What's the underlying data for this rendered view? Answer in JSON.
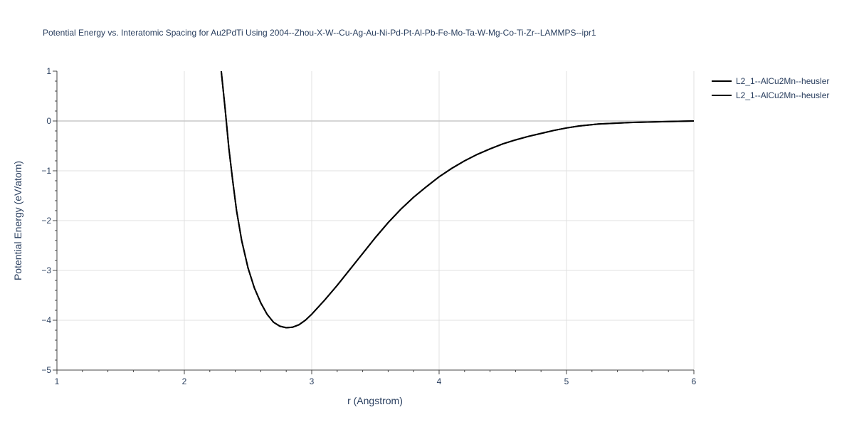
{
  "chart_data": {
    "type": "line",
    "title": "Potential Energy vs. Interatomic Spacing for Au2PdTi Using 2004--Zhou-X-W--Cu-Ag-Au-Ni-Pd-Pt-Al-Pb-Fe-Mo-Ta-W-Mg-Co-Ti-Zr--LAMMPS--ipr1",
    "xlabel": "r (Angstrom)",
    "ylabel": "Potential Energy (eV/atom)",
    "xlim": [
      1,
      6
    ],
    "ylim": [
      -5,
      1
    ],
    "x_ticks": [
      "1",
      "2",
      "3",
      "4",
      "5",
      "6"
    ],
    "y_ticks": [
      "1",
      "0",
      "−1",
      "−2",
      "−3",
      "−4",
      "−5"
    ],
    "grid": true,
    "legend_position": "top-right",
    "series": [
      {
        "name": "L2_1--AlCu2Mn--heusler",
        "color": "#000000",
        "x": [
          2.29,
          2.32,
          2.35,
          2.38,
          2.41,
          2.45,
          2.5,
          2.55,
          2.6,
          2.65,
          2.7,
          2.75,
          2.8,
          2.85,
          2.9,
          2.95,
          3.0,
          3.1,
          3.2,
          3.3,
          3.4,
          3.5,
          3.6,
          3.7,
          3.8,
          3.9,
          4.0,
          4.1,
          4.2,
          4.3,
          4.4,
          4.5,
          4.6,
          4.7,
          4.8,
          4.9,
          5.0,
          5.1,
          5.25,
          5.5,
          5.75,
          6.0
        ],
        "y": [
          1.0,
          0.25,
          -0.55,
          -1.2,
          -1.8,
          -2.4,
          -2.95,
          -3.35,
          -3.65,
          -3.88,
          -4.04,
          -4.12,
          -4.15,
          -4.14,
          -4.09,
          -4.0,
          -3.88,
          -3.6,
          -3.3,
          -2.98,
          -2.66,
          -2.34,
          -2.04,
          -1.77,
          -1.53,
          -1.32,
          -1.12,
          -0.95,
          -0.8,
          -0.67,
          -0.56,
          -0.46,
          -0.38,
          -0.31,
          -0.25,
          -0.19,
          -0.14,
          -0.1,
          -0.06,
          -0.03,
          -0.015,
          0.0
        ]
      },
      {
        "name": "L2_1--AlCu2Mn--heusler",
        "color": "#000000",
        "x": [
          2.29,
          2.32,
          2.35,
          2.38,
          2.41,
          2.45,
          2.5,
          2.55,
          2.6,
          2.65,
          2.7,
          2.75,
          2.8,
          2.85,
          2.9,
          2.95,
          3.0,
          3.1,
          3.2,
          3.3,
          3.4,
          3.5,
          3.6,
          3.7,
          3.8,
          3.9,
          4.0,
          4.1,
          4.2,
          4.3,
          4.4,
          4.5,
          4.6,
          4.7,
          4.8,
          4.9,
          5.0,
          5.1,
          5.25,
          5.5,
          5.75,
          6.0
        ],
        "y": [
          1.0,
          0.25,
          -0.55,
          -1.2,
          -1.8,
          -2.4,
          -2.95,
          -3.35,
          -3.65,
          -3.88,
          -4.04,
          -4.12,
          -4.15,
          -4.14,
          -4.09,
          -4.0,
          -3.88,
          -3.6,
          -3.3,
          -2.98,
          -2.66,
          -2.34,
          -2.04,
          -1.77,
          -1.53,
          -1.32,
          -1.12,
          -0.95,
          -0.8,
          -0.67,
          -0.56,
          -0.46,
          -0.38,
          -0.31,
          -0.25,
          -0.19,
          -0.14,
          -0.1,
          -0.06,
          -0.03,
          -0.015,
          0.0
        ]
      }
    ]
  }
}
